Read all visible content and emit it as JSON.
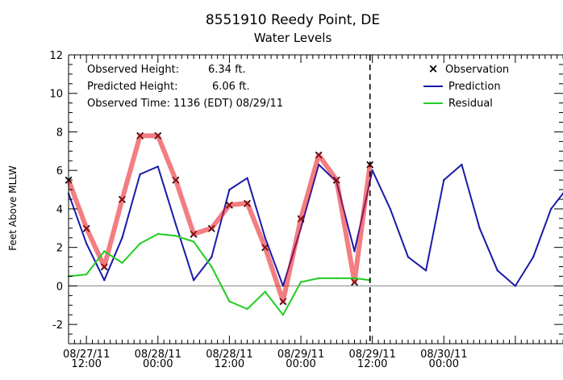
{
  "chart_data": {
    "type": "line",
    "title": "8551910 Reedy Point, DE",
    "subtitle": "Water Levels",
    "ylabel": "Feet Above MLLW",
    "xlabel": "",
    "ylim": [
      -3,
      12
    ],
    "yticks": [
      -2,
      0,
      2,
      4,
      6,
      8,
      10,
      12
    ],
    "xlim": [
      "08/27/11 09:00",
      "08/30/11 20:00"
    ],
    "xticks": [
      {
        "value": "08/27/11 12:00",
        "line1": "08/27/11",
        "line2": "12:00"
      },
      {
        "value": "08/28/11 00:00",
        "line1": "08/28/11",
        "line2": "00:00"
      },
      {
        "value": "08/28/11 12:00",
        "line1": "08/28/11",
        "line2": "12:00"
      },
      {
        "value": "08/29/11 00:00",
        "line1": "08/29/11",
        "line2": "00:00"
      },
      {
        "value": "08/29/11 12:00",
        "line1": "08/29/11",
        "line2": "12:00"
      },
      {
        "value": "08/30/11 00:00",
        "line1": "08/30/11",
        "line2": "00:00"
      }
    ],
    "info": {
      "observed_height_label": "Observed Height:",
      "observed_height_value": "6.34 ft.",
      "predicted_height_label": "Predicted Height:",
      "predicted_height_value": "6.06 ft.",
      "observed_time_text": "Observed Time: 1136 (EDT) 08/29/11"
    },
    "current_time": "08/29/11 11:36",
    "legend": {
      "placement": "top-right",
      "entries": [
        {
          "label": "Observation",
          "color": "#e8141c",
          "marker": "x"
        },
        {
          "label": "Prediction",
          "color": "#1a1aa8",
          "marker": "line"
        },
        {
          "label": "Residual",
          "color": "#22cc22",
          "marker": "line"
        }
      ]
    },
    "zero_line": true,
    "series": [
      {
        "name": "Prediction",
        "color": "#1a1aa8",
        "x": [
          "08/27/11 09:00",
          "08/27/11 12:00",
          "08/27/11 15:00",
          "08/27/11 18:00",
          "08/27/11 21:00",
          "08/28/11 00:00",
          "08/28/11 03:00",
          "08/28/11 06:00",
          "08/28/11 09:00",
          "08/28/11 12:00",
          "08/28/11 15:00",
          "08/28/11 18:00",
          "08/28/11 21:00",
          "08/29/11 00:00",
          "08/29/11 03:00",
          "08/29/11 06:00",
          "08/29/11 09:00",
          "08/29/11 12:00",
          "08/29/11 15:00",
          "08/29/11 18:00",
          "08/29/11 21:00",
          "08/30/11 00:00",
          "08/30/11 03:00",
          "08/30/11 06:00",
          "08/30/11 09:00",
          "08/30/11 12:00",
          "08/30/11 15:00",
          "08/30/11 18:00",
          "08/30/11 20:00"
        ],
        "values": [
          4.8,
          2.2,
          0.3,
          2.5,
          5.8,
          6.2,
          3.2,
          0.3,
          1.5,
          5.0,
          5.6,
          2.5,
          0.0,
          3.0,
          6.3,
          5.4,
          1.8,
          6.0,
          4.0,
          1.5,
          0.8,
          5.5,
          6.3,
          3.0,
          0.8,
          0.0,
          1.5,
          4.0,
          4.8
        ]
      },
      {
        "name": "Observation",
        "color": "#e8141c",
        "x": [
          "08/27/11 09:00",
          "08/27/11 12:00",
          "08/27/11 15:00",
          "08/27/11 18:00",
          "08/27/11 21:00",
          "08/28/11 00:00",
          "08/28/11 03:00",
          "08/28/11 06:00",
          "08/28/11 09:00",
          "08/28/11 12:00",
          "08/28/11 15:00",
          "08/28/11 18:00",
          "08/28/11 21:00",
          "08/29/11 00:00",
          "08/29/11 03:00",
          "08/29/11 06:00",
          "08/29/11 09:00",
          "08/29/11 11:36"
        ],
        "values": [
          5.5,
          3.0,
          1.0,
          4.5,
          7.8,
          7.8,
          5.5,
          2.7,
          3.0,
          4.2,
          4.3,
          2.0,
          -0.8,
          3.5,
          6.8,
          5.5,
          0.2,
          6.3
        ]
      },
      {
        "name": "Residual",
        "color": "#22cc22",
        "x": [
          "08/27/11 09:00",
          "08/27/11 12:00",
          "08/27/11 15:00",
          "08/27/11 18:00",
          "08/27/11 21:00",
          "08/28/11 00:00",
          "08/28/11 03:00",
          "08/28/11 06:00",
          "08/28/11 09:00",
          "08/28/11 12:00",
          "08/28/11 15:00",
          "08/28/11 18:00",
          "08/28/11 21:00",
          "08/29/11 00:00",
          "08/29/11 03:00",
          "08/29/11 06:00",
          "08/29/11 09:00",
          "08/29/11 11:36"
        ],
        "values": [
          0.5,
          0.6,
          1.8,
          1.2,
          2.2,
          2.7,
          2.6,
          2.3,
          1.0,
          -0.8,
          -1.2,
          -0.3,
          -1.5,
          0.2,
          0.4,
          0.4,
          0.4,
          0.3
        ]
      }
    ]
  }
}
